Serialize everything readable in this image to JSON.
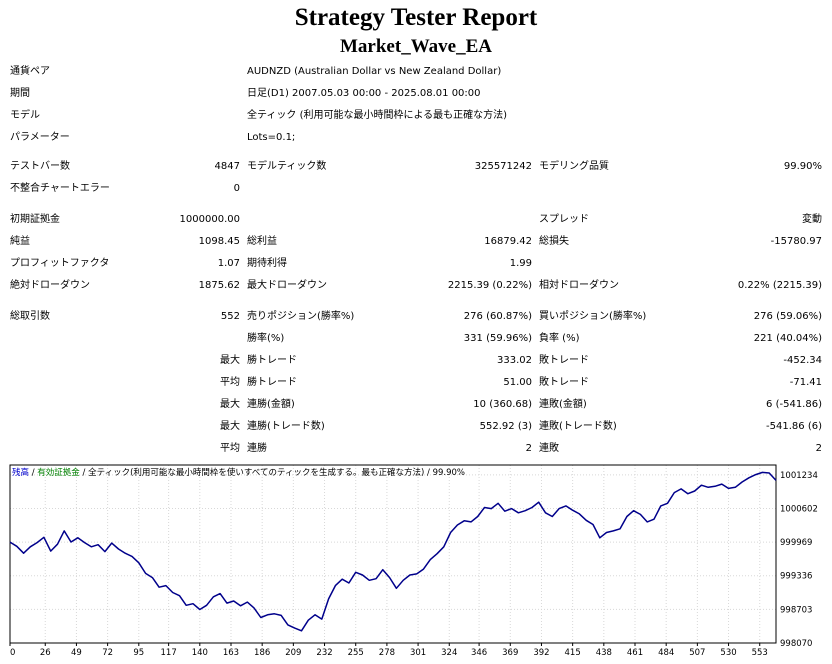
{
  "report": {
    "title": "Strategy Tester Report",
    "subtitle": "Market_Wave_EA"
  },
  "info": {
    "symbol_label": "通貨ペア",
    "symbol_value": "AUDNZD (Australian Dollar vs New Zealand Dollar)",
    "period_label": "期間",
    "period_value": "日足(D1) 2007.05.03 00:00 - 2025.08.01 00:00",
    "model_label": "モデル",
    "model_value": "全ティック (利用可能な最小時間枠による最も正確な方法)",
    "params_label": "パラメーター",
    "params_value": "Lots=0.1;"
  },
  "stats": {
    "bars_label": "テストバー数",
    "bars_value": "4847",
    "ticks_label": "モデルティック数",
    "ticks_value": "325571242",
    "quality_label": "モデリング品質",
    "quality_value": "99.90%",
    "mismatch_label": "不整合チャートエラー",
    "mismatch_value": "0",
    "deposit_label": "初期証拠金",
    "deposit_value": "1000000.00",
    "spread_label": "スプレッド",
    "spread_value": "変動",
    "net_label": "純益",
    "net_value": "1098.45",
    "gross_profit_label": "総利益",
    "gross_profit_value": "16879.42",
    "gross_loss_label": "総損失",
    "gross_loss_value": "-15780.97",
    "pf_label": "プロフィットファクタ",
    "pf_value": "1.07",
    "payoff_label": "期待利得",
    "payoff_value": "1.99",
    "abs_dd_label": "絶対ドローダウン",
    "abs_dd_value": "1875.62",
    "max_dd_label": "最大ドローダウン",
    "max_dd_value": "2215.39 (0.22%)",
    "rel_dd_label": "相対ドローダウン",
    "rel_dd_value": "0.22% (2215.39)"
  },
  "trades": {
    "total_label": "総取引数",
    "total_value": "552",
    "short_label": "売りポジション(勝率%)",
    "short_value": "276 (60.87%)",
    "long_label": "買いポジション(勝率%)",
    "long_value": "276 (59.06%)",
    "win_label": "勝率(%)",
    "win_value": "331 (59.96%)",
    "loss_label": "負率 (%)",
    "loss_value": "221 (40.04%)",
    "q_max": "最大",
    "q_avg": "平均",
    "largest_win_label": "勝トレード",
    "largest_win_value": "333.02",
    "largest_loss_label": "敗トレード",
    "largest_loss_value": "-452.34",
    "avg_win_label": "勝トレード",
    "avg_win_value": "51.00",
    "avg_loss_label": "敗トレード",
    "avg_loss_value": "-71.41",
    "cons_wins_money_label": "連勝(金額)",
    "cons_wins_money_value": "10 (360.68)",
    "cons_losses_money_label": "連敗(金額)",
    "cons_losses_money_value": "6 (-541.86)",
    "cons_profit_label": "連勝(トレード数)",
    "cons_profit_value": "552.92 (3)",
    "cons_loss_label": "連敗(トレード数)",
    "cons_loss_value": "-541.86 (6)",
    "avg_cons_wins_label": "連勝",
    "avg_cons_wins_value": "2",
    "avg_cons_losses_label": "連敗",
    "avg_cons_losses_value": "2"
  },
  "chart_legend": {
    "balance": "残高",
    "sep": " / ",
    "equity": "有効証拠金",
    "model": "全ティック(利用可能な最小時間枠を使いすべてのティックを生成する。最も正確な方法)",
    "quality": "99.90%"
  },
  "colors": {
    "balance_line": "#00008b",
    "balance_text": "#0000cc",
    "equity_text": "#008000",
    "grid": "#d8d8d8",
    "axis": "#000000"
  },
  "chart_data": {
    "type": "line",
    "title": "",
    "xlabel": "",
    "ylabel": "",
    "x_ticks": [
      0,
      26,
      49,
      72,
      95,
      117,
      140,
      163,
      186,
      209,
      232,
      255,
      278,
      301,
      324,
      346,
      369,
      392,
      415,
      438,
      461,
      484,
      507,
      530,
      553
    ],
    "y_ticks": [
      998070,
      998703,
      999336,
      999969,
      1000602,
      1001234
    ],
    "xlim": [
      0,
      565
    ],
    "ylim": [
      998070,
      1001420
    ],
    "grid": true,
    "series": [
      {
        "x": [
          0,
          5,
          10,
          15,
          20,
          25,
          30,
          35,
          40,
          45,
          50,
          55,
          60,
          65,
          70,
          75,
          80,
          85,
          90,
          95,
          100,
          105,
          110,
          115,
          120,
          125,
          130,
          135,
          140,
          145,
          150,
          155,
          160,
          165,
          170,
          175,
          180,
          185,
          190,
          195,
          200,
          205,
          210,
          215,
          220,
          225,
          230,
          235,
          240,
          245,
          250,
          255,
          260,
          265,
          270,
          275,
          280,
          285,
          290,
          295,
          300,
          305,
          310,
          315,
          320,
          325,
          330,
          335,
          340,
          345,
          350,
          355,
          360,
          365,
          370,
          375,
          380,
          385,
          390,
          395,
          400,
          405,
          410,
          415,
          420,
          425,
          430,
          435,
          440,
          445,
          450,
          455,
          460,
          465,
          470,
          475,
          480,
          485,
          490,
          495,
          500,
          505,
          510,
          515,
          520,
          525,
          530,
          535,
          540,
          545,
          550,
          555,
          560,
          565
        ],
        "values": [
          999969,
          999890,
          999760,
          999880,
          999960,
          1000060,
          999800,
          999930,
          1000180,
          999970,
          1000050,
          999960,
          999880,
          999920,
          999790,
          999950,
          999840,
          999760,
          999700,
          999580,
          999380,
          999300,
          999120,
          999150,
          999020,
          998960,
          998780,
          998810,
          998700,
          998780,
          998940,
          999000,
          998820,
          998860,
          998770,
          998840,
          998730,
          998550,
          998600,
          998620,
          998590,
          998410,
          998350,
          998300,
          998500,
          998600,
          998520,
          998900,
          999150,
          999270,
          999200,
          999400,
          999350,
          999250,
          999280,
          999450,
          999300,
          999100,
          999250,
          999350,
          999370,
          999460,
          999640,
          999750,
          999880,
          1000150,
          1000290,
          1000370,
          1000350,
          1000450,
          1000620,
          1000600,
          1000700,
          1000550,
          1000600,
          1000520,
          1000560,
          1000620,
          1000720,
          1000520,
          1000450,
          1000600,
          1000650,
          1000570,
          1000500,
          1000380,
          1000300,
          1000050,
          1000150,
          1000180,
          1000220,
          1000450,
          1000560,
          1000490,
          1000350,
          1000400,
          1000650,
          1000700,
          1000900,
          1000970,
          1000880,
          1000930,
          1001040,
          1001000,
          1001020,
          1001060,
          1000980,
          1001000,
          1001100,
          1001180,
          1001240,
          1001280,
          1001270,
          1001130
        ]
      }
    ]
  }
}
